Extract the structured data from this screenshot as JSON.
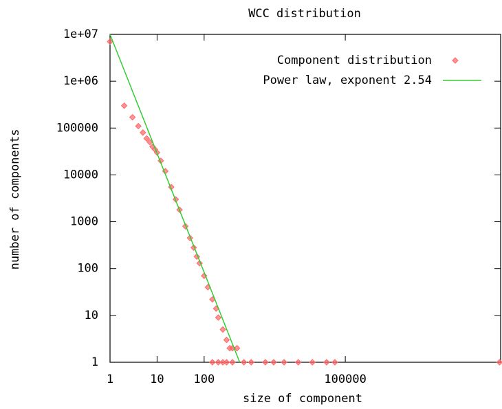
{
  "chart_data": {
    "type": "scatter",
    "title": "WCC distribution",
    "x_label": "size of component",
    "y_label": "number of components",
    "log_x": true,
    "log_y": true,
    "grid": false,
    "legend": "top-right",
    "xlim": [
      1,
      200000000
    ],
    "ylim": [
      1,
      10000000
    ],
    "xticks": [
      1,
      10,
      100,
      100000
    ],
    "yticks": [
      1,
      10,
      100,
      1000,
      10000,
      100000,
      {
        "value": 1000000,
        "label": "1e+06"
      },
      {
        "value": 10000000,
        "label": "1e+07"
      }
    ],
    "series": [
      {
        "name": "Component distribution",
        "kind": "points",
        "color": "#ff6666",
        "x": [
          1,
          2,
          3,
          4,
          5,
          6,
          7,
          8,
          9,
          10,
          12,
          15,
          20,
          25,
          30,
          40,
          50,
          60,
          70,
          80,
          100,
          120,
          150,
          180,
          200,
          250,
          300,
          350,
          400,
          500,
          150,
          200,
          250,
          300,
          400,
          700,
          1000,
          2000,
          3000,
          5000,
          10000,
          20000,
          40000,
          60000,
          190000000
        ],
        "values": [
          7000000,
          300000,
          170000,
          110000,
          80000,
          60000,
          50000,
          40000,
          35000,
          30000,
          20000,
          12000,
          5500,
          3000,
          1800,
          800,
          450,
          280,
          180,
          130,
          70,
          40,
          22,
          14,
          9,
          5,
          3,
          2,
          2,
          2,
          1,
          1,
          1,
          1,
          1,
          1,
          1,
          1,
          1,
          1,
          1,
          1,
          1,
          1,
          1
        ]
      },
      {
        "name": "Power law, exponent 2.54",
        "kind": "line",
        "color": "#33cc33",
        "x": [
          1,
          570
        ],
        "values": [
          10000000,
          1
        ]
      }
    ]
  }
}
